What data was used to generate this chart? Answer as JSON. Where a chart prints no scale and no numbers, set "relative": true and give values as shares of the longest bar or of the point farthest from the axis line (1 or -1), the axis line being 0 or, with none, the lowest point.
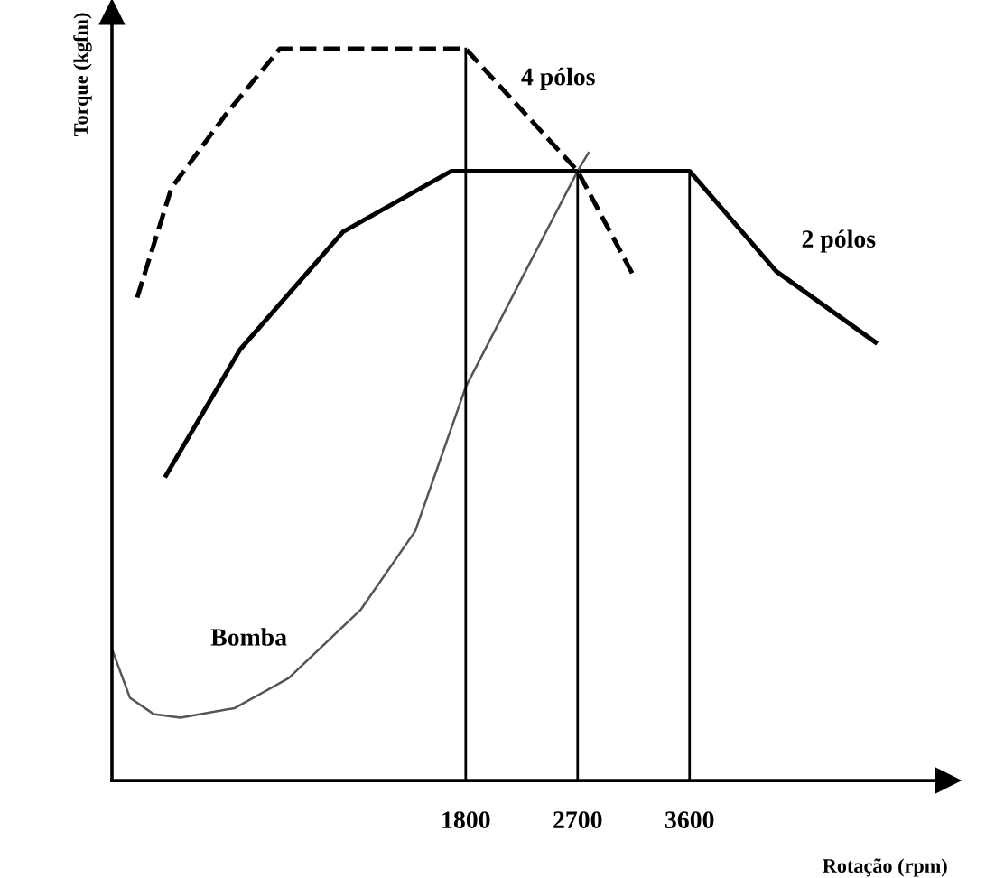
{
  "chart_data": {
    "type": "line",
    "relative": true,
    "xlabel": "Rotação (rpm)",
    "ylabel": "Torque (kgfm)",
    "xlim": [
      -1045,
      5676
    ],
    "xticks": [
      1800,
      2700,
      3600
    ],
    "series": [
      {
        "name": "4 pólos",
        "color": "#000000",
        "line_style": "dashed",
        "x": [
          -842,
          -566,
          -131,
          305,
          1800,
          2700,
          3165
        ],
        "values": [
          0.66,
          0.81,
          0.91,
          1,
          1,
          0.833,
          0.685
        ]
      },
      {
        "name": "2 pólos",
        "color": "#000000",
        "line_style": "solid",
        "x": [
          -610,
          -15,
          813,
          1684,
          3600,
          4297,
          5095
        ],
        "values": [
          0.417,
          0.589,
          0.75,
          0.833,
          0.833,
          0.696,
          0.599
        ]
      },
      {
        "name": "Bomba",
        "color": "#555555",
        "line_style": "solid",
        "x": [
          -1045,
          -900,
          -711,
          -494,
          -58,
          377,
          958,
          1394,
          1800,
          2265,
          2700,
          2787
        ],
        "values": [
          0.18,
          0.113,
          0.091,
          0.086,
          0.099,
          0.14,
          0.234,
          0.341,
          0.538,
          0.691,
          0.833,
          0.858
        ]
      }
    ],
    "ref_lines": [
      {
        "axis": "x",
        "value": 1800,
        "color": "#000000"
      },
      {
        "axis": "x",
        "value": 2700,
        "color": "#000000"
      },
      {
        "axis": "x",
        "value": 3600,
        "color": "#000000"
      }
    ],
    "grid": false,
    "legend": false
  }
}
